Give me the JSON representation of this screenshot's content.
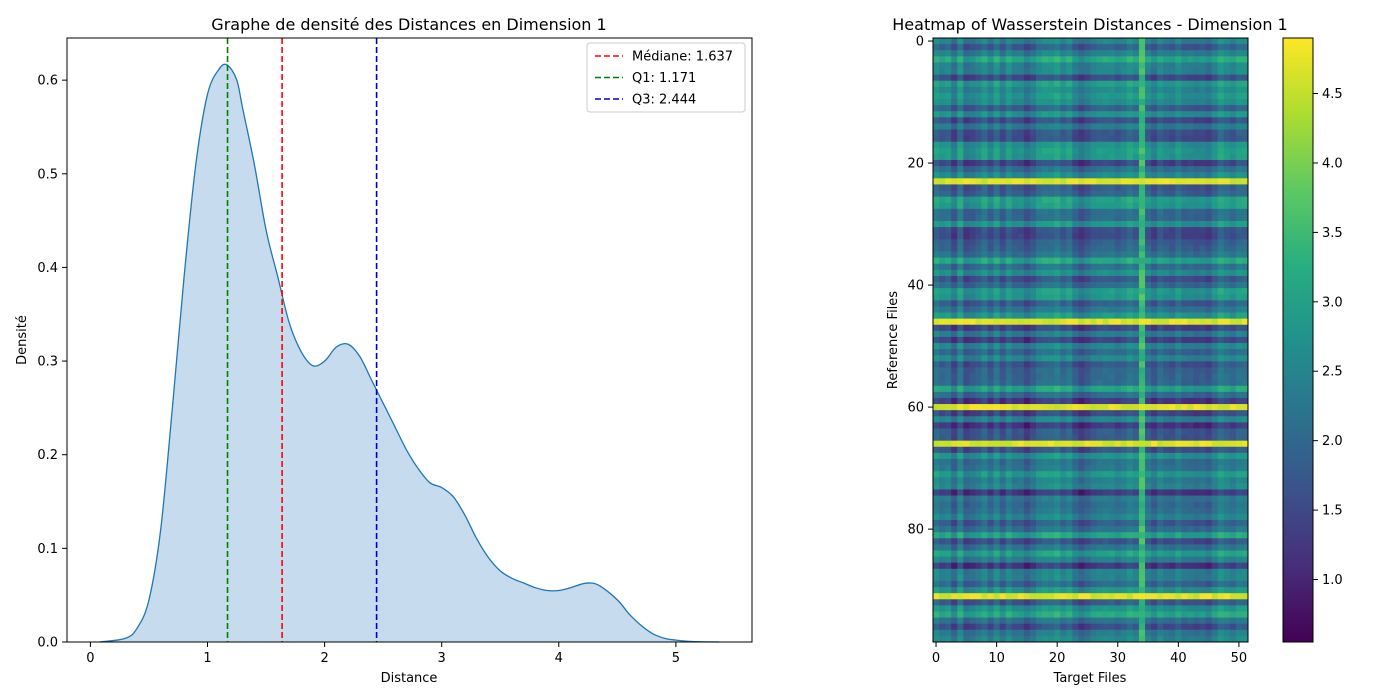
{
  "chart_data": [
    {
      "type": "area",
      "title": "Graphe de densité des Distances en Dimension 1",
      "xlabel": "Distance",
      "ylabel": "Densité",
      "xlim": [
        -0.2,
        5.65
      ],
      "ylim": [
        0,
        0.645
      ],
      "xticks": [
        0,
        1,
        2,
        3,
        4,
        5
      ],
      "yticks": [
        0.0,
        0.1,
        0.2,
        0.3,
        0.4,
        0.5,
        0.6
      ],
      "series": [
        {
          "x": [
            0.08,
            0.3,
            0.4,
            0.5,
            0.6,
            0.7,
            0.8,
            0.9,
            1.0,
            1.1,
            1.17,
            1.25,
            1.3,
            1.4,
            1.5,
            1.6,
            1.7,
            1.8,
            1.9,
            2.0,
            2.1,
            2.2,
            2.3,
            2.4,
            2.5,
            2.6,
            2.7,
            2.8,
            2.9,
            3.0,
            3.1,
            3.2,
            3.3,
            3.4,
            3.5,
            3.6,
            3.7,
            3.8,
            3.9,
            4.0,
            4.1,
            4.2,
            4.27,
            4.35,
            4.5,
            4.6,
            4.7,
            4.8,
            4.9,
            5.0,
            5.1,
            5.2,
            5.37
          ],
          "values": [
            0.0,
            0.004,
            0.015,
            0.045,
            0.12,
            0.25,
            0.39,
            0.51,
            0.585,
            0.612,
            0.616,
            0.6,
            0.57,
            0.51,
            0.44,
            0.39,
            0.34,
            0.31,
            0.295,
            0.3,
            0.315,
            0.318,
            0.305,
            0.28,
            0.255,
            0.23,
            0.205,
            0.185,
            0.17,
            0.165,
            0.155,
            0.135,
            0.11,
            0.09,
            0.076,
            0.068,
            0.063,
            0.058,
            0.055,
            0.055,
            0.058,
            0.062,
            0.063,
            0.06,
            0.045,
            0.03,
            0.018,
            0.009,
            0.004,
            0.002,
            0.0008,
            0.0003,
            0.0
          ]
        }
      ],
      "vlines": [
        {
          "label": "Médiane: 1.637",
          "x": 1.637,
          "color": "#ff0000"
        },
        {
          "label": "Q1: 1.171",
          "x": 1.171,
          "color": "#008000"
        },
        {
          "label": "Q3: 2.444",
          "x": 2.444,
          "color": "#0000cc"
        }
      ],
      "legend": "top-right",
      "grid": false,
      "fill_color": "#c6dbed",
      "line_color": "#1f77b4"
    },
    {
      "type": "heatmap",
      "title": "Heatmap of Wasserstein Distances - Dimension 1",
      "xlabel": "Target Files",
      "ylabel": "Reference Files",
      "xticks": [
        0,
        10,
        20,
        30,
        40,
        50
      ],
      "yticks": [
        0,
        20,
        40,
        60,
        80
      ],
      "rows": 99,
      "cols": 52,
      "colormap": "viridis",
      "vmin": 0.55,
      "vmax": 4.9,
      "colorbar_ticks": [
        1.0,
        1.5,
        2.0,
        2.5,
        3.0,
        3.5,
        4.0,
        4.5
      ],
      "bright_rows": [
        23,
        46,
        60,
        66,
        91
      ],
      "bright_cols": [
        34
      ]
    }
  ]
}
